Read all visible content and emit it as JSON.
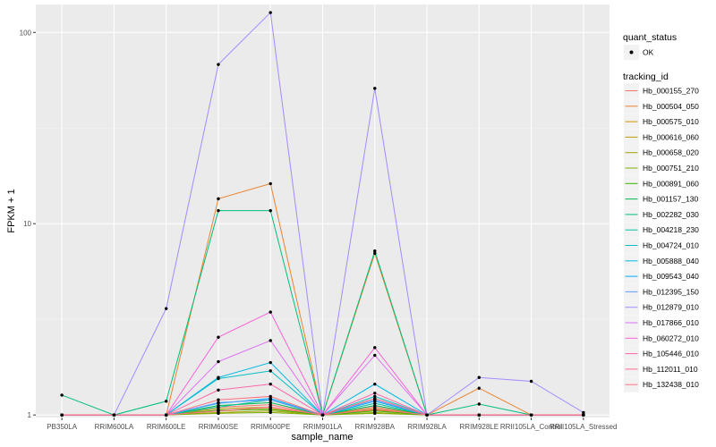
{
  "chart_data": {
    "type": "line",
    "xlabel": "sample_name",
    "ylabel": "FPKM + 1",
    "y_scale": "log10",
    "ylim": [
      0.97,
      140
    ],
    "y_ticks": [
      {
        "value": 1,
        "label": "1"
      },
      {
        "value": 10,
        "label": "10"
      },
      {
        "value": 100,
        "label": "100"
      }
    ],
    "grid": true,
    "legend_position": "right",
    "categories": [
      "PB350LA",
      "RRIM600LA",
      "RRIM600LE",
      "RRIM600SE",
      "RRIM600PE",
      "RRIM901LA",
      "RRIM928BA",
      "RRIM928LA",
      "RRIM928LE",
      "RRII105LA_Control",
      "RRII105LA_Stressed"
    ],
    "quant_status": {
      "title": "quant_status",
      "entries": [
        "OK"
      ]
    },
    "legend_title": "tracking_id",
    "series": [
      {
        "name": "Hb_000155_270",
        "color": "#F8766D",
        "values": [
          1.0,
          1.0,
          1.0,
          1.1,
          1.13,
          1.0,
          1.1,
          1.0,
          1.0,
          1.0,
          1.0
        ]
      },
      {
        "name": "Hb_000504_050",
        "color": "#EA8331",
        "values": [
          1.0,
          1.0,
          1.0,
          13.5,
          16.2,
          1.0,
          7.0,
          1.0,
          1.38,
          1.0,
          1.0
        ]
      },
      {
        "name": "Hb_000575_010",
        "color": "#D89000",
        "values": [
          1.0,
          1.0,
          1.0,
          1.05,
          1.08,
          1.0,
          1.06,
          1.0,
          1.0,
          1.0,
          1.0
        ]
      },
      {
        "name": "Hb_000616_060",
        "color": "#C09B00",
        "values": [
          1.0,
          1.0,
          1.0,
          1.08,
          1.1,
          1.0,
          1.08,
          1.0,
          1.0,
          1.0,
          1.0
        ]
      },
      {
        "name": "Hb_000658_020",
        "color": "#A3A500",
        "values": [
          1.0,
          1.0,
          1.0,
          1.03,
          1.05,
          1.0,
          1.03,
          1.0,
          1.0,
          1.0,
          1.0
        ]
      },
      {
        "name": "Hb_000751_210",
        "color": "#7CAE00",
        "values": [
          1.0,
          1.0,
          1.0,
          1.02,
          1.03,
          1.0,
          1.02,
          1.0,
          1.0,
          1.0,
          1.0
        ]
      },
      {
        "name": "Hb_000891_060",
        "color": "#39B600",
        "values": [
          1.0,
          1.0,
          1.0,
          1.06,
          1.07,
          1.0,
          1.05,
          1.0,
          1.0,
          1.0,
          1.0
        ]
      },
      {
        "name": "Hb_001157_130",
        "color": "#00BB4E",
        "values": [
          1.0,
          1.0,
          1.0,
          1.12,
          1.16,
          1.0,
          1.12,
          1.0,
          1.0,
          1.0,
          1.0
        ]
      },
      {
        "name": "Hb_002282_030",
        "color": "#00BF7D",
        "values": [
          1.27,
          1.0,
          1.18,
          11.7,
          11.7,
          1.0,
          7.2,
          1.0,
          1.14,
          1.0,
          1.0
        ]
      },
      {
        "name": "Hb_004218_230",
        "color": "#00C1A3",
        "values": [
          1.0,
          1.0,
          1.0,
          1.1,
          1.2,
          1.0,
          1.15,
          1.0,
          1.0,
          1.0,
          1.0
        ]
      },
      {
        "name": "Hb_004724_010",
        "color": "#00BFC4",
        "values": [
          1.0,
          1.0,
          1.0,
          1.55,
          1.7,
          1.0,
          1.25,
          1.0,
          1.0,
          1.0,
          1.0
        ]
      },
      {
        "name": "Hb_005888_040",
        "color": "#00B8E5",
        "values": [
          1.0,
          1.0,
          1.0,
          1.57,
          1.88,
          1.0,
          1.45,
          1.0,
          1.0,
          1.0,
          1.0
        ]
      },
      {
        "name": "Hb_009543_040",
        "color": "#00ABFD",
        "values": [
          1.0,
          1.0,
          1.0,
          1.15,
          1.22,
          1.0,
          1.18,
          1.0,
          1.0,
          1.0,
          1.0
        ]
      },
      {
        "name": "Hb_012395_150",
        "color": "#619CFF",
        "values": [
          1.0,
          1.0,
          1.0,
          1.16,
          1.2,
          1.0,
          1.2,
          1.0,
          1.0,
          1.0,
          1.0
        ]
      },
      {
        "name": "Hb_012879_010",
        "color": "#A58AFF",
        "values": [
          1.0,
          1.0,
          3.6,
          68.0,
          127.0,
          1.0,
          51.0,
          1.0,
          1.57,
          1.5,
          1.03
        ]
      },
      {
        "name": "Hb_017866_010",
        "color": "#DF70F8",
        "values": [
          1.0,
          1.0,
          1.0,
          1.9,
          2.45,
          1.0,
          2.05,
          1.0,
          1.0,
          1.0,
          1.0
        ]
      },
      {
        "name": "Hb_060272_010",
        "color": "#FB61D7",
        "values": [
          1.0,
          1.0,
          1.0,
          2.55,
          3.45,
          1.0,
          2.25,
          1.0,
          1.0,
          1.0,
          1.0
        ]
      },
      {
        "name": "Hb_105446_010",
        "color": "#FF66A8",
        "values": [
          1.0,
          1.0,
          1.0,
          1.35,
          1.45,
          1.0,
          1.3,
          1.0,
          1.0,
          1.0,
          1.0
        ]
      },
      {
        "name": "Hb_112011_010",
        "color": "#FF6C91",
        "values": [
          1.0,
          1.0,
          1.0,
          1.05,
          1.1,
          1.0,
          1.07,
          1.0,
          1.0,
          1.0,
          1.0
        ]
      },
      {
        "name": "Hb_132438_010",
        "color": "#FC717F",
        "values": [
          1.0,
          1.0,
          1.0,
          1.2,
          1.25,
          1.0,
          1.22,
          1.0,
          1.0,
          1.0,
          1.0
        ]
      }
    ]
  }
}
